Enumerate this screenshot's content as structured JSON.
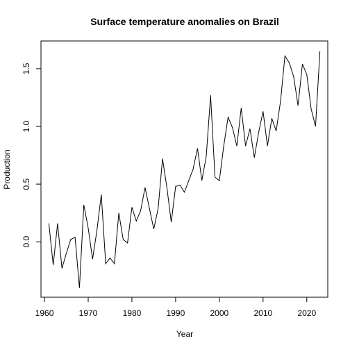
{
  "chart_data": {
    "type": "line",
    "title": "Surface temperature anomalies on Brazil",
    "xlabel": "Year",
    "ylabel": "Production",
    "xlim": [
      1959.2,
      2024.8
    ],
    "ylim": [
      -0.48,
      1.74
    ],
    "x_ticks": [
      1960,
      1970,
      1980,
      1990,
      2000,
      2010,
      2020
    ],
    "y_ticks": [
      0.0,
      0.5,
      1.0,
      1.5
    ],
    "y_tick_labels": [
      "0.0",
      "0.5",
      "1.0",
      "1.5"
    ],
    "grid": false,
    "line_color": "#000000",
    "series": [
      {
        "x": [
          1961,
          1962,
          1963,
          1964,
          1965,
          1966,
          1967,
          1968,
          1969,
          1970,
          1971,
          1972,
          1973,
          1974,
          1975,
          1976,
          1977,
          1978,
          1979,
          1980,
          1981,
          1982,
          1983,
          1984,
          1985,
          1986,
          1987,
          1988,
          1989,
          1990,
          1991,
          1992,
          1993,
          1994,
          1995,
          1996,
          1997,
          1998,
          1999,
          2000,
          2001,
          2002,
          2003,
          2004,
          2005,
          2006,
          2007,
          2008,
          2009,
          2010,
          2011,
          2012,
          2013,
          2014,
          2015,
          2016,
          2017,
          2018,
          2019,
          2020,
          2021,
          2022,
          2023
        ],
        "values": [
          0.16,
          -0.2,
          0.16,
          -0.23,
          -0.1,
          0.02,
          0.04,
          -0.4,
          0.32,
          0.12,
          -0.15,
          0.1,
          0.41,
          -0.19,
          -0.14,
          -0.19,
          0.25,
          0.02,
          -0.01,
          0.3,
          0.18,
          0.27,
          0.47,
          0.29,
          0.11,
          0.29,
          0.72,
          0.47,
          0.17,
          0.48,
          0.49,
          0.43,
          0.53,
          0.63,
          0.81,
          0.53,
          0.74,
          1.27,
          0.56,
          0.53,
          0.83,
          1.08,
          0.99,
          0.83,
          1.16,
          0.83,
          0.98,
          0.73,
          0.95,
          1.13,
          0.83,
          1.07,
          0.96,
          1.22,
          1.61,
          1.55,
          1.43,
          1.18,
          1.54,
          1.45,
          1.15,
          1.0,
          1.65
        ]
      }
    ]
  }
}
